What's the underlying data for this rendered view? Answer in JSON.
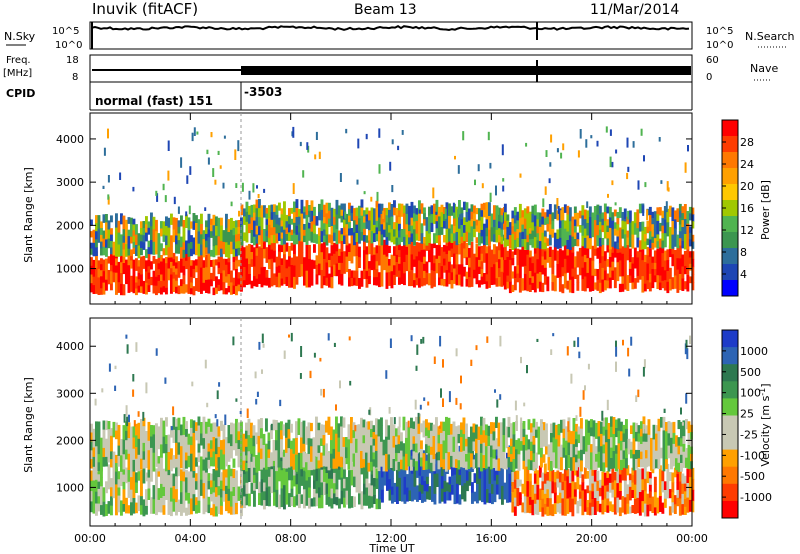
{
  "header": {
    "station": "Inuvik (fitACF)",
    "beam": "Beam 13",
    "date": "11/Mar/2014"
  },
  "top_panels": {
    "nsky_label": "N.Sky",
    "nsky_ticks": [
      "10^5",
      "10^0"
    ],
    "nsearch_label": "N.Search",
    "nsearch_ticks": [
      "10^5",
      "10^0"
    ],
    "freq_label_1": "Freq.",
    "freq_label_2": "[MHz]",
    "freq_ticks": [
      "18",
      "8"
    ],
    "nave_label": "Nave",
    "nave_ticks": [
      "60",
      "0"
    ],
    "cpid_label": "CPID",
    "cpid_segments": [
      {
        "label": "normal (fast) 151",
        "start_hour": 0,
        "end_hour": 6
      },
      {
        "label": "-3503",
        "start_hour": 6,
        "end_hour": 24
      }
    ]
  },
  "power_colorbar": {
    "label": "Power [dB]",
    "ticks": [
      "28",
      "24",
      "20",
      "16",
      "12",
      "8",
      "4"
    ],
    "colors": [
      "#ff0000",
      "#ff3c00",
      "#ff7800",
      "#ffa000",
      "#ffc800",
      "#a0c800",
      "#50b450",
      "#3c9650",
      "#2d6e9b",
      "#1e46b4",
      "#0000ff"
    ]
  },
  "velocity_colorbar": {
    "label": "Velocity [m s",
    "label_sup": "-1",
    "label_end": "]",
    "ticks": [
      "1000",
      "500",
      "100",
      "25",
      "-25",
      "-100",
      "-500",
      "-1000"
    ],
    "colors": [
      "#1e3cc8",
      "#2d64b4",
      "#2d7850",
      "#3c9650",
      "#64c83c",
      "#c8c8b4",
      "#c8c8b4",
      "#ffa000",
      "#ff7800",
      "#ff3c00",
      "#ff0000"
    ]
  },
  "chart_data": [
    {
      "type": "heatmap",
      "title": "Power",
      "ylabel": "Slant Range [km]",
      "xlabel": "Time UT",
      "x_ticks": [
        "00:00",
        "04:00",
        "08:00",
        "12:00",
        "16:00",
        "20:00",
        "00:00"
      ],
      "y_ticks": [
        "1000",
        "2000",
        "3000",
        "4000"
      ],
      "ylim": [
        180,
        4600
      ],
      "xlim_hours": [
        0,
        24
      ],
      "colorbar_range_db": [
        0,
        30
      ],
      "bands": [
        {
          "start_hour": 0.0,
          "end_hour": 6.0,
          "range_km": [
            450,
            1300
          ],
          "level": "high"
        },
        {
          "start_hour": 0.0,
          "end_hour": 6.0,
          "range_km": [
            1300,
            2200
          ],
          "level": "medium"
        },
        {
          "start_hour": 6.0,
          "end_hour": 16.5,
          "range_km": [
            600,
            1600
          ],
          "level": "high"
        },
        {
          "start_hour": 6.0,
          "end_hour": 16.5,
          "range_km": [
            1600,
            2500
          ],
          "level": "medium"
        },
        {
          "start_hour": 16.5,
          "end_hour": 24.0,
          "range_km": [
            500,
            1500
          ],
          "level": "high"
        },
        {
          "start_hour": 16.5,
          "end_hour": 24.0,
          "range_km": [
            1500,
            2400
          ],
          "level": "medium"
        }
      ]
    },
    {
      "type": "heatmap",
      "title": "Velocity",
      "ylabel": "Slant Range [km]",
      "xlabel": "Time UT",
      "x_ticks": [
        "00:00",
        "04:00",
        "08:00",
        "12:00",
        "16:00",
        "20:00",
        "00:00"
      ],
      "y_ticks": [
        "1000",
        "2000",
        "3000",
        "4000"
      ],
      "ylim": [
        180,
        4600
      ],
      "xlim_hours": [
        0,
        24
      ],
      "colorbar_range_ms": [
        -1000,
        1000
      ],
      "bands": [
        {
          "start_hour": 0.0,
          "end_hour": 6.0,
          "range_km": [
            450,
            1400
          ],
          "level": "mixed"
        },
        {
          "start_hour": 6.0,
          "end_hour": 11.5,
          "range_km": [
            600,
            1700
          ],
          "level": "positive"
        },
        {
          "start_hour": 11.5,
          "end_hour": 16.8,
          "range_km": [
            700,
            1800
          ],
          "level": "strong-positive"
        },
        {
          "start_hour": 16.8,
          "end_hour": 24.0,
          "range_km": [
            450,
            1400
          ],
          "level": "negative"
        },
        {
          "start_hour": 0.0,
          "end_hour": 24.0,
          "range_km": [
            1400,
            2400
          ],
          "level": "mixed"
        }
      ]
    }
  ]
}
